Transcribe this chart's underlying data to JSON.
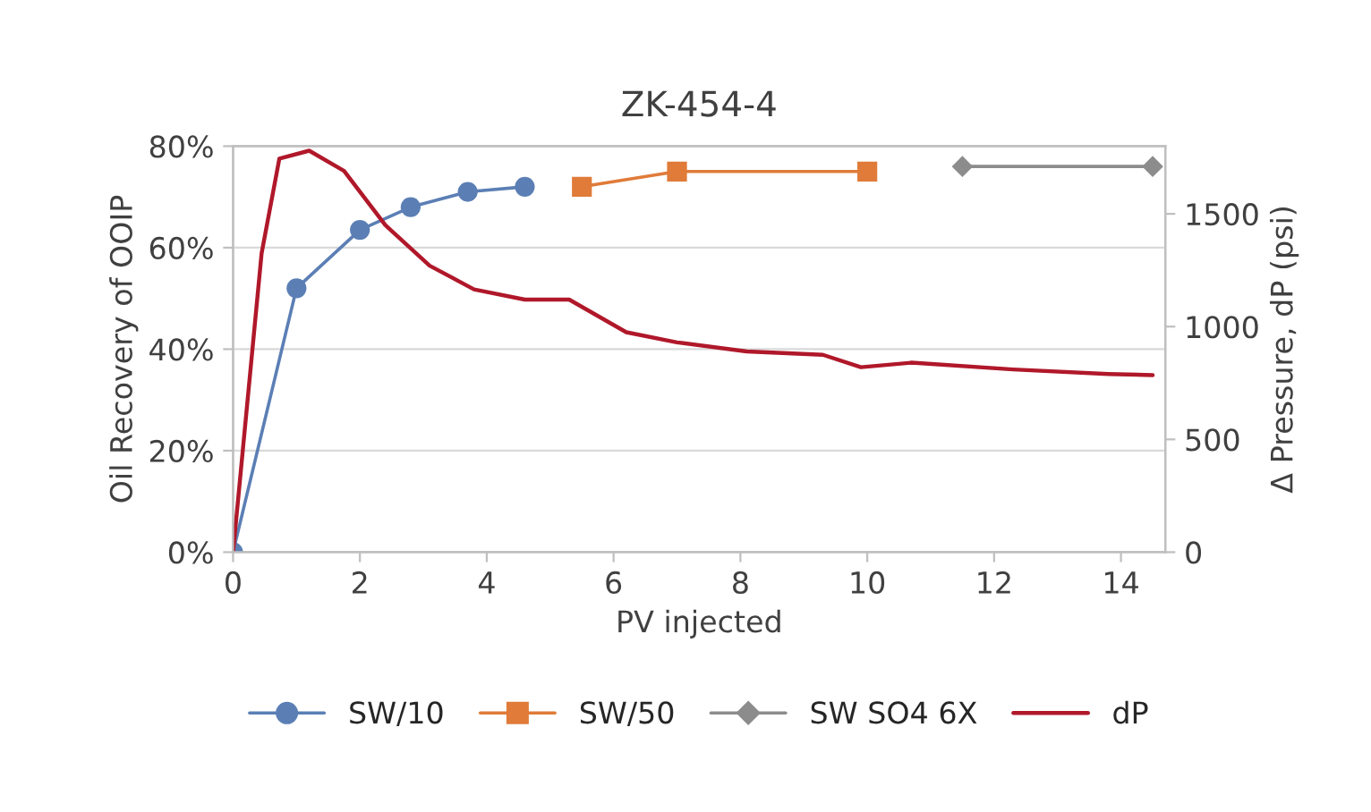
{
  "chart_data": {
    "type": "line",
    "title": "ZK-454-4",
    "xlabel": "PV injected",
    "ylabel": "Oil Recovery of OOIP",
    "y2label": "Δ Pressure, dP (psi)",
    "xlim": [
      0,
      14.7
    ],
    "xticks": [
      0,
      2,
      4,
      6,
      8,
      10,
      12,
      14
    ],
    "ylim": [
      0,
      80
    ],
    "yticks": [
      {
        "value": 0,
        "label": "0%"
      },
      {
        "value": 20,
        "label": "20%"
      },
      {
        "value": 40,
        "label": "40%"
      },
      {
        "value": 60,
        "label": "60%"
      },
      {
        "value": 80,
        "label": "80%"
      }
    ],
    "y2lim": [
      0,
      1800
    ],
    "y2ticks": [
      0,
      500,
      1000,
      1500
    ],
    "grid": "y",
    "legend": "bottom",
    "series": [
      {
        "name": "SW/10",
        "color": "#5b7fb5",
        "marker": "circle",
        "x": [
          0,
          1.0,
          2.0,
          2.8,
          3.7,
          4.6
        ],
        "values": [
          0,
          52,
          63.5,
          68,
          71,
          72
        ]
      },
      {
        "name": "SW/50",
        "color": "#e07b39",
        "marker": "square",
        "x": [
          5.5,
          7.0,
          10.0
        ],
        "values": [
          72,
          75,
          75
        ]
      },
      {
        "name": "SW SO4 6X",
        "color": "#8c8c8c",
        "marker": "diamond",
        "x": [
          11.5,
          14.5
        ],
        "values": [
          76,
          76
        ]
      },
      {
        "name": "dP",
        "color": "#b0182a",
        "marker": "none",
        "axis": "y2",
        "x": [
          0,
          0.45,
          0.73,
          1.2,
          1.75,
          2.4,
          3.1,
          3.8,
          4.6,
          5.3,
          6.2,
          7.0,
          8.1,
          9.3,
          9.9,
          10.7,
          12.3,
          13.8,
          14.5
        ],
        "values": [
          0,
          1325,
          1745,
          1780,
          1690,
          1450,
          1270,
          1165,
          1120,
          1120,
          975,
          930,
          890,
          875,
          820,
          840,
          810,
          790,
          785
        ]
      }
    ]
  }
}
